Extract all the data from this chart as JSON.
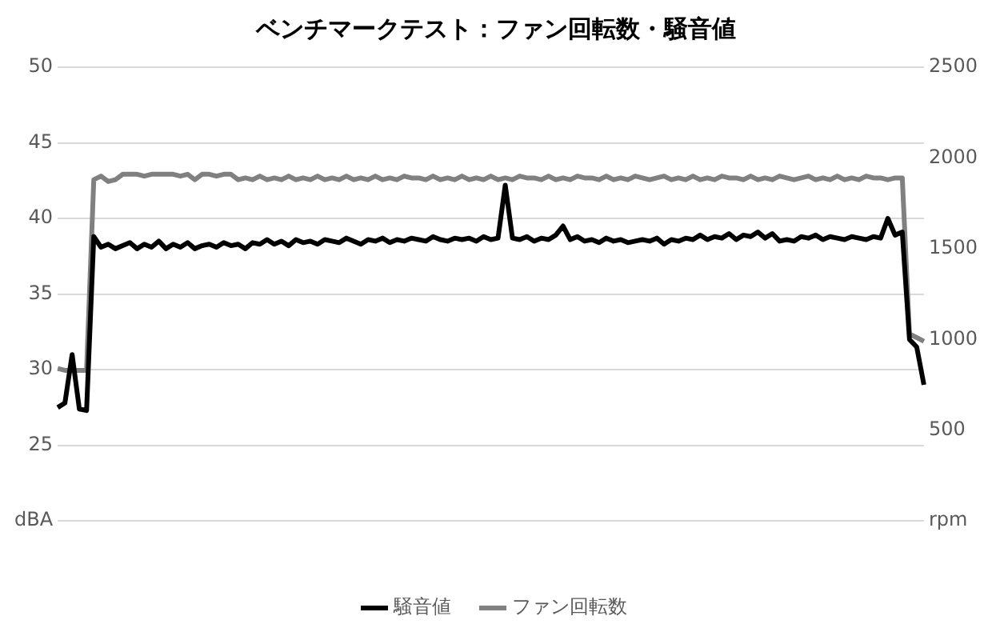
{
  "chart_data": {
    "type": "line",
    "title": "ベンチマークテスト：ファン回転数・騒音値",
    "categories": [
      null,
      null,
      null,
      null,
      null,
      null,
      null,
      null,
      null,
      null,
      null,
      null,
      null,
      null,
      null,
      null,
      null,
      null,
      null,
      null,
      null,
      null,
      null,
      null,
      null,
      null,
      null,
      null,
      null,
      null,
      null,
      null,
      null,
      null,
      null,
      null,
      null,
      null,
      null,
      null,
      null,
      null,
      null,
      null,
      null,
      null,
      null,
      null,
      null,
      null,
      null,
      null,
      null,
      null,
      null,
      null,
      null,
      null,
      null,
      null,
      null,
      null,
      null,
      null,
      null,
      null,
      null,
      null,
      null,
      null,
      null,
      null,
      null,
      null,
      null,
      null,
      null,
      null,
      null,
      null,
      null,
      null,
      null,
      null,
      null,
      null,
      null,
      null,
      null,
      null,
      null,
      null,
      null,
      null,
      null,
      null,
      null,
      null,
      null,
      null,
      null,
      null,
      null,
      null,
      null,
      null,
      null,
      null,
      null,
      null,
      null,
      null,
      null,
      null,
      null,
      null,
      null,
      null,
      null,
      null,
      null
    ],
    "series": [
      {
        "name": "騒音値",
        "color": "#000000",
        "axis": "y",
        "values": [
          27.5,
          27.8,
          31.0,
          27.4,
          27.3,
          38.8,
          38.1,
          38.3,
          38.0,
          38.2,
          38.4,
          38.0,
          38.3,
          38.1,
          38.5,
          38.0,
          38.3,
          38.1,
          38.4,
          38.0,
          38.2,
          38.3,
          38.1,
          38.4,
          38.2,
          38.3,
          38.0,
          38.4,
          38.3,
          38.6,
          38.3,
          38.5,
          38.2,
          38.6,
          38.4,
          38.5,
          38.3,
          38.6,
          38.5,
          38.4,
          38.7,
          38.5,
          38.3,
          38.6,
          38.5,
          38.7,
          38.4,
          38.6,
          38.5,
          38.7,
          38.6,
          38.5,
          38.8,
          38.6,
          38.5,
          38.7,
          38.6,
          38.7,
          38.5,
          38.8,
          38.6,
          38.7,
          42.2,
          38.7,
          38.6,
          38.8,
          38.5,
          38.7,
          38.6,
          38.9,
          39.5,
          38.6,
          38.8,
          38.5,
          38.6,
          38.4,
          38.7,
          38.5,
          38.6,
          38.4,
          38.5,
          38.6,
          38.5,
          38.7,
          38.3,
          38.6,
          38.5,
          38.7,
          38.6,
          38.9,
          38.6,
          38.8,
          38.7,
          39.0,
          38.6,
          38.9,
          38.8,
          39.1,
          38.7,
          39.0,
          38.5,
          38.6,
          38.5,
          38.8,
          38.7,
          38.9,
          38.6,
          38.8,
          38.7,
          38.6,
          38.8,
          38.7,
          38.6,
          38.8,
          38.7,
          40.0,
          38.9,
          39.1,
          32.0,
          31.5,
          29.0
        ]
      },
      {
        "name": "ファン回転数",
        "color": "#808080",
        "axis": "y2",
        "values": [
          840,
          830,
          830,
          830,
          830,
          1880,
          1900,
          1870,
          1880,
          1910,
          1910,
          1910,
          1900,
          1910,
          1910,
          1910,
          1910,
          1900,
          1910,
          1880,
          1910,
          1910,
          1900,
          1910,
          1910,
          1880,
          1890,
          1880,
          1900,
          1880,
          1890,
          1880,
          1900,
          1880,
          1890,
          1880,
          1900,
          1880,
          1890,
          1880,
          1900,
          1880,
          1890,
          1880,
          1900,
          1880,
          1890,
          1880,
          1900,
          1890,
          1890,
          1880,
          1900,
          1880,
          1890,
          1880,
          1900,
          1880,
          1890,
          1880,
          1900,
          1880,
          1890,
          1880,
          1900,
          1890,
          1890,
          1880,
          1900,
          1880,
          1890,
          1880,
          1900,
          1890,
          1890,
          1880,
          1900,
          1880,
          1890,
          1880,
          1900,
          1890,
          1880,
          1890,
          1900,
          1880,
          1890,
          1880,
          1900,
          1880,
          1890,
          1880,
          1900,
          1890,
          1890,
          1880,
          1900,
          1880,
          1890,
          1880,
          1900,
          1890,
          1880,
          1890,
          1900,
          1880,
          1890,
          1880,
          1900,
          1880,
          1890,
          1880,
          1900,
          1890,
          1890,
          1880,
          1890,
          1890,
          1030,
          1010,
          990
        ]
      }
    ],
    "ylim": [
      20,
      50
    ],
    "yticks": [
      {
        "value": 20,
        "label": "dBA"
      },
      25,
      30,
      35,
      40,
      45,
      50
    ],
    "y2lim": [
      0,
      2500
    ],
    "y2ticks": [
      {
        "value": 0,
        "label": "rpm"
      },
      500,
      1000,
      1500,
      2000,
      2500
    ],
    "grid": "y",
    "legend": "bottom",
    "marker": "none",
    "line_style": "solid"
  }
}
